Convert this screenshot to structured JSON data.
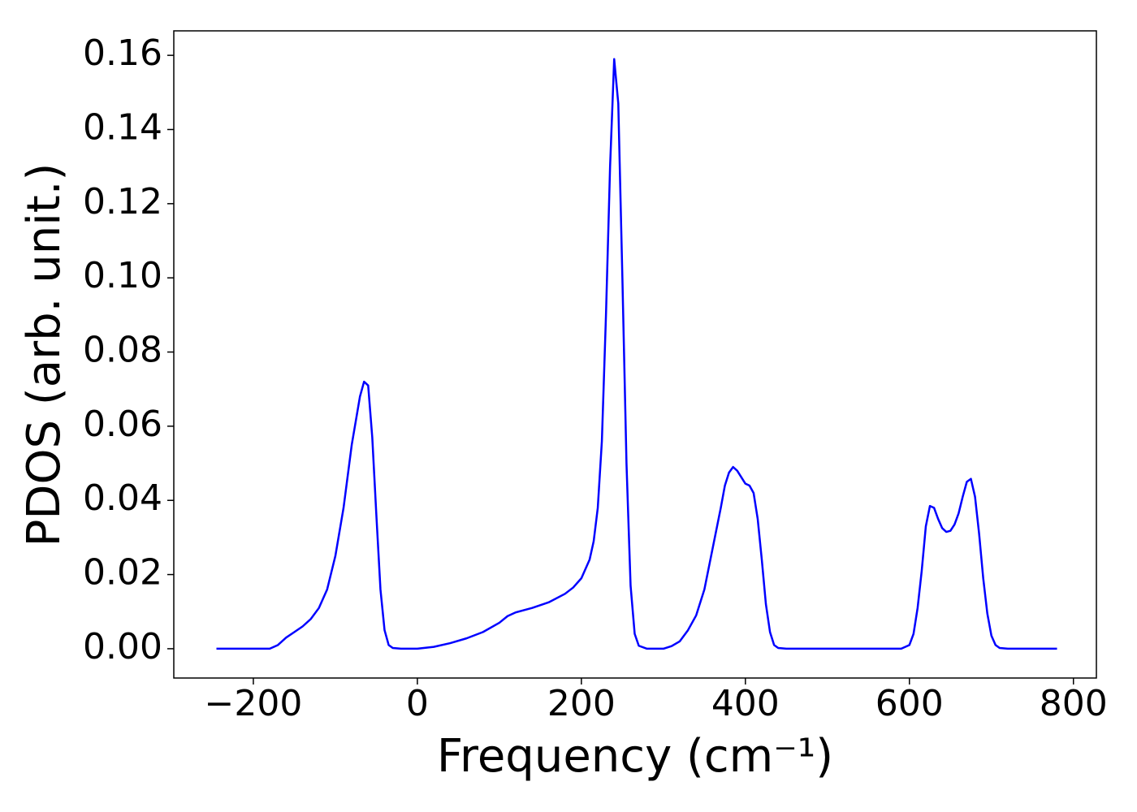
{
  "chart_data": {
    "type": "line",
    "xlabel": "Frequency (cm⁻¹)",
    "ylabel": "PDOS (arb. unit.)",
    "xlim": [
      -297,
      828
    ],
    "ylim": [
      -0.0079,
      0.1666
    ],
    "xticks": [
      {
        "value": -200,
        "label": "−200"
      },
      0,
      200,
      400,
      600,
      800
    ],
    "yticks": [
      {
        "value": 0,
        "label": "0.00"
      },
      {
        "value": 0.02,
        "label": "0.02"
      },
      {
        "value": 0.04,
        "label": "0.04"
      },
      {
        "value": 0.06,
        "label": "0.06"
      },
      {
        "value": 0.08,
        "label": "0.08"
      },
      {
        "value": 0.1,
        "label": "0.10"
      },
      {
        "value": 0.12,
        "label": "0.12"
      },
      {
        "value": 0.14,
        "label": "0.14"
      },
      {
        "value": 0.16,
        "label": "0.16"
      }
    ],
    "grid": false,
    "series": [
      {
        "color": "#0000ff",
        "x": [
          -245,
          -180,
          -170,
          -160,
          -150,
          -140,
          -130,
          -120,
          -110,
          -100,
          -90,
          -80,
          -70,
          -65,
          -60,
          -55,
          -50,
          -45,
          -40,
          -35,
          -30,
          -20,
          0,
          20,
          40,
          60,
          80,
          100,
          110,
          120,
          140,
          160,
          180,
          190,
          200,
          210,
          215,
          220,
          225,
          230,
          235,
          240,
          245,
          250,
          255,
          260,
          265,
          270,
          280,
          300,
          310,
          320,
          330,
          340,
          350,
          360,
          370,
          375,
          380,
          385,
          390,
          400,
          405,
          410,
          415,
          420,
          425,
          430,
          435,
          440,
          450,
          590,
          600,
          605,
          610,
          615,
          620,
          625,
          630,
          635,
          640,
          645,
          650,
          655,
          660,
          665,
          670,
          675,
          680,
          685,
          690,
          695,
          700,
          705,
          710,
          720,
          780
        ],
        "values": [
          0,
          0,
          0.001,
          0.003,
          0.0045,
          0.006,
          0.008,
          0.011,
          0.016,
          0.025,
          0.038,
          0.055,
          0.068,
          0.072,
          0.071,
          0.057,
          0.036,
          0.016,
          0.005,
          0.001,
          0.0002,
          0,
          0,
          0.0005,
          0.0015,
          0.0028,
          0.0045,
          0.007,
          0.0088,
          0.0098,
          0.011,
          0.0125,
          0.0148,
          0.0165,
          0.019,
          0.024,
          0.029,
          0.038,
          0.056,
          0.09,
          0.13,
          0.159,
          0.147,
          0.1,
          0.05,
          0.017,
          0.004,
          0.0008,
          0,
          0,
          0.0007,
          0.002,
          0.005,
          0.009,
          0.016,
          0.027,
          0.038,
          0.044,
          0.0475,
          0.049,
          0.048,
          0.0445,
          0.044,
          0.042,
          0.035,
          0.024,
          0.012,
          0.0045,
          0.001,
          0.0002,
          0,
          0,
          0.001,
          0.004,
          0.011,
          0.021,
          0.033,
          0.0385,
          0.038,
          0.035,
          0.0325,
          0.0315,
          0.0318,
          0.0335,
          0.0365,
          0.041,
          0.045,
          0.0458,
          0.041,
          0.031,
          0.019,
          0.0095,
          0.0035,
          0.001,
          0.0002,
          0,
          0
        ]
      }
    ]
  }
}
